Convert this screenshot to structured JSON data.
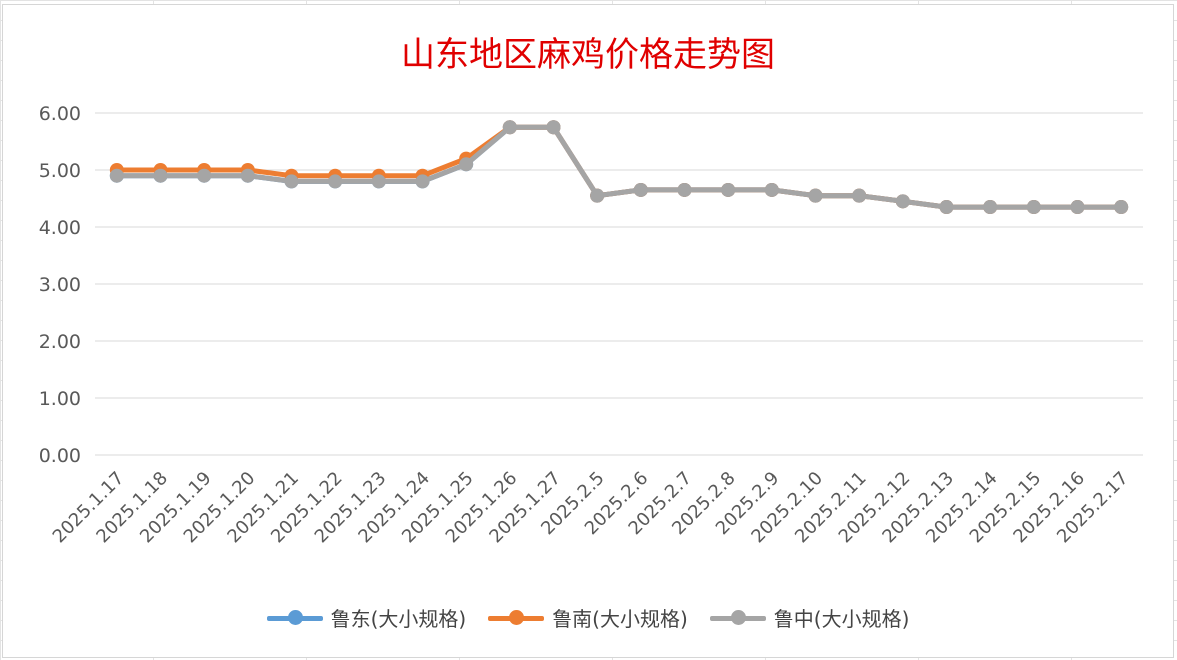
{
  "chart_data": {
    "type": "line",
    "title": "山东地区麻鸡价格走势图",
    "xlabel": "",
    "ylabel": "",
    "categories": [
      "2025.1.17",
      "2025.1.18",
      "2025.1.19",
      "2025.1.20",
      "2025.1.21",
      "2025.1.22",
      "2025.1.23",
      "2025.1.24",
      "2025.1.25",
      "2025.1.26",
      "2025.1.27",
      "2025.2.5",
      "2025.2.6",
      "2025.2.7",
      "2025.2.8",
      "2025.2.9",
      "2025.2.10",
      "2025.2.11",
      "2025.2.12",
      "2025.2.13",
      "2025.2.14",
      "2025.2.15",
      "2025.2.16",
      "2025.2.17"
    ],
    "ylim": [
      0,
      6
    ],
    "yticks": [
      "0.00",
      "1.00",
      "2.00",
      "3.00",
      "4.00",
      "5.00",
      "6.00"
    ],
    "grid": true,
    "legend_position": "bottom",
    "series": [
      {
        "name": "鲁东(大小规格)",
        "color": "#5b9bd5",
        "values": [
          4.9,
          4.9,
          4.9,
          4.9,
          4.8,
          4.8,
          4.8,
          4.8,
          5.1,
          5.75,
          5.75,
          4.55,
          4.65,
          4.65,
          4.65,
          4.65,
          4.55,
          4.55,
          4.45,
          4.35,
          4.35,
          4.35,
          4.35,
          4.35
        ]
      },
      {
        "name": "鲁南(大小规格)",
        "color": "#ed7d31",
        "values": [
          5.0,
          5.0,
          5.0,
          5.0,
          4.9,
          4.9,
          4.9,
          4.9,
          5.2,
          5.75,
          5.75,
          4.55,
          4.65,
          4.65,
          4.65,
          4.65,
          4.55,
          4.55,
          4.45,
          4.35,
          4.35,
          4.35,
          4.35,
          4.35
        ]
      },
      {
        "name": "鲁中(大小规格)",
        "color": "#a5a5a5",
        "values": [
          4.9,
          4.9,
          4.9,
          4.9,
          4.8,
          4.8,
          4.8,
          4.8,
          5.1,
          5.75,
          5.75,
          4.55,
          4.65,
          4.65,
          4.65,
          4.65,
          4.55,
          4.55,
          4.45,
          4.35,
          4.35,
          4.35,
          4.35,
          4.35
        ]
      }
    ]
  }
}
